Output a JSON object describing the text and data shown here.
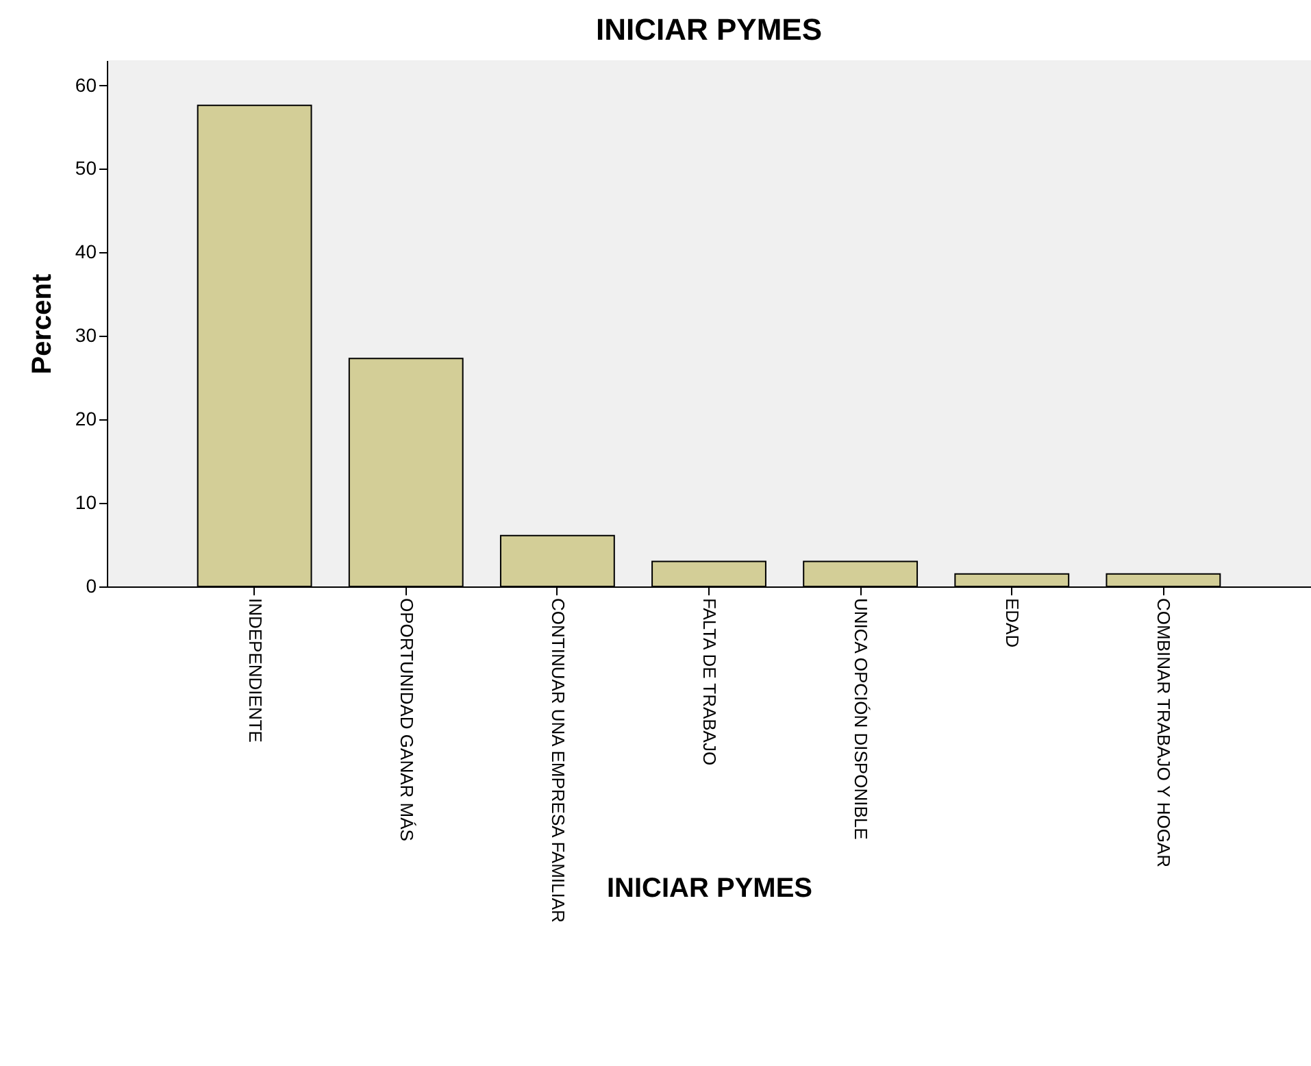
{
  "chart_data": {
    "type": "bar",
    "title": "INICIAR PYMES",
    "xlabel": "INICIAR PYMES",
    "ylabel": "Percent",
    "categories": [
      "INDEPENDIENTE",
      "OPORTUNIDAD GANAR MÁS",
      "CONTINUAR UNA EMPRESA FAMILIAR",
      "FALTA DE TRABAJO",
      "UNICA  OPCIÓN DISPONIBLE",
      "EDAD",
      "COMBINAR TRABAJO Y HOGAR"
    ],
    "values": [
      57.6,
      27.3,
      6.1,
      3.0,
      3.0,
      1.5,
      1.5
    ],
    "color": "#d3ce97",
    "ylim": [
      0,
      63
    ],
    "yticks": [
      0,
      10,
      20,
      30,
      40,
      50,
      60
    ],
    "grid": false
  }
}
